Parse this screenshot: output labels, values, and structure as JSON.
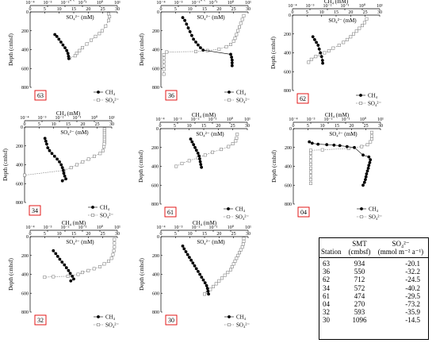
{
  "axis_text": {
    "ch4_axis": "CH₄ (mM)",
    "so4_axis": "SO₄²⁻ (mM)",
    "depth_axis": "Depth (cmbsf)",
    "log_ticks": [
      "10⁻⁴",
      "10⁻³",
      "10⁻²",
      "10⁻¹",
      "10⁰",
      "10¹"
    ],
    "lin_ticks": [
      "0",
      "5",
      "10",
      "15",
      "20",
      "25",
      "30"
    ],
    "depth_ticks": [
      "0",
      "200",
      "400",
      "600",
      "800"
    ]
  },
  "legend": {
    "ch4": "CH₄",
    "so4": "SO₄²⁻"
  },
  "colors": {
    "ch4": "#000000",
    "so4": "#888888"
  },
  "table": {
    "headers": {
      "station": "Station",
      "smt": "SMT",
      "smt_unit": "(cmbsf)",
      "flux": "SO₄²⁻",
      "flux_unit": "(mmol m⁻² a⁻¹)"
    },
    "rows": [
      {
        "station": "63",
        "smt": "934",
        "flux": "-20.1"
      },
      {
        "station": "36",
        "smt": "550",
        "flux": "-32.2"
      },
      {
        "station": "62",
        "smt": "712",
        "flux": "-24.5"
      },
      {
        "station": "34",
        "smt": "572",
        "flux": "-40.2"
      },
      {
        "station": "61",
        "smt": "474",
        "flux": "-29.5"
      },
      {
        "station": "04",
        "smt": "270",
        "flux": "-73.2"
      },
      {
        "station": "32",
        "smt": "593",
        "flux": "-35.9"
      },
      {
        "station": "30",
        "smt": "1096",
        "flux": "-14.5"
      }
    ]
  },
  "chart_data": [
    {
      "type": "scatter",
      "station": "63",
      "x_top_scale": "log",
      "x_top_range": [
        0.0001,
        10
      ],
      "x_bottom_range": [
        0,
        30
      ],
      "y_range": [
        0,
        800
      ],
      "y_reversed": true,
      "ch4": [
        [
          8.5,
          240
        ],
        [
          9.2,
          260
        ],
        [
          9.9,
          290
        ],
        [
          10.6,
          320
        ],
        [
          11.3,
          350
        ],
        [
          12.0,
          380
        ],
        [
          12.6,
          410
        ],
        [
          13.0,
          440
        ],
        [
          13.2,
          470
        ],
        [
          13.3,
          495
        ]
      ],
      "so4": [
        [
          27.0,
          20
        ],
        [
          27.3,
          50
        ],
        [
          27.0,
          90
        ],
        [
          26.0,
          150
        ],
        [
          24.8,
          200
        ],
        [
          23.8,
          230
        ],
        [
          22.5,
          260
        ],
        [
          21.0,
          300
        ],
        [
          19.5,
          340
        ],
        [
          18.0,
          380
        ],
        [
          17.0,
          410
        ],
        [
          16.0,
          440
        ],
        [
          15.5,
          465
        ],
        [
          13.5,
          490
        ]
      ]
    },
    {
      "type": "scatter",
      "station": "36",
      "x_top_scale": "log",
      "x_top_range": [
        0.0001,
        10
      ],
      "x_bottom_range": [
        0,
        30
      ],
      "y_range": [
        0,
        800
      ],
      "y_reversed": true,
      "ch4": [
        [
          7.5,
          60
        ],
        [
          8.2,
          90
        ],
        [
          8.8,
          130
        ],
        [
          9.4,
          170
        ],
        [
          10.0,
          210
        ],
        [
          10.6,
          250
        ],
        [
          11.2,
          290
        ],
        [
          12.0,
          320
        ],
        [
          12.8,
          350
        ],
        [
          13.6,
          380
        ],
        [
          14.5,
          405
        ],
        [
          24.0,
          450
        ],
        [
          24.3,
          480
        ],
        [
          24.5,
          510
        ],
        [
          24.5,
          540
        ],
        [
          24.5,
          570
        ]
      ],
      "so4": [
        [
          28.5,
          40
        ],
        [
          28.0,
          80
        ],
        [
          27.5,
          120
        ],
        [
          27.0,
          160
        ],
        [
          26.5,
          200
        ],
        [
          26.0,
          240
        ],
        [
          25.5,
          280
        ],
        [
          25.0,
          310
        ],
        [
          24.0,
          345
        ],
        [
          22.5,
          370
        ],
        [
          20.0,
          395
        ],
        [
          16.0,
          410
        ],
        [
          12.0,
          420
        ],
        [
          2.0,
          425
        ],
        [
          1.0,
          455
        ],
        [
          1.0,
          490
        ],
        [
          1.0,
          530
        ],
        [
          1.0,
          570
        ],
        [
          1.0,
          610
        ],
        [
          1.0,
          660
        ]
      ]
    },
    {
      "type": "scatter",
      "station": "62",
      "x_top_scale": "log",
      "x_top_range": [
        0.0001,
        10
      ],
      "x_bottom_range": [
        0,
        30
      ],
      "y_range": [
        0,
        800
      ],
      "y_reversed": true,
      "ch4": [
        [
          7.0,
          230
        ],
        [
          7.6,
          260
        ],
        [
          8.2,
          290
        ],
        [
          8.8,
          320
        ],
        [
          9.2,
          360
        ],
        [
          9.6,
          400
        ],
        [
          10.0,
          440
        ],
        [
          10.3,
          480
        ],
        [
          10.4,
          510
        ]
      ],
      "so4": [
        [
          25.5,
          40
        ],
        [
          24.8,
          80
        ],
        [
          24.0,
          110
        ],
        [
          23.0,
          140
        ],
        [
          22.0,
          170
        ],
        [
          21.0,
          200
        ],
        [
          20.0,
          230
        ],
        [
          18.8,
          260
        ],
        [
          17.5,
          290
        ],
        [
          16.0,
          320
        ],
        [
          14.0,
          350
        ],
        [
          12.5,
          380
        ],
        [
          11.0,
          400
        ],
        [
          9.5,
          420
        ],
        [
          8.0,
          440
        ],
        [
          6.5,
          470
        ],
        [
          5.5,
          500
        ]
      ]
    },
    {
      "type": "scatter",
      "station": "34",
      "x_top_scale": "log",
      "x_top_range": [
        0.0001,
        10
      ],
      "x_bottom_range": [
        0,
        30
      ],
      "y_range": [
        0,
        800
      ],
      "y_reversed": true,
      "ch4": [
        [
          7.0,
          120
        ],
        [
          7.3,
          150
        ],
        [
          7.6,
          180
        ],
        [
          8.0,
          220
        ],
        [
          8.6,
          250
        ],
        [
          9.4,
          280
        ],
        [
          10.3,
          310
        ],
        [
          11.2,
          340
        ],
        [
          12.0,
          370
        ],
        [
          12.6,
          400
        ],
        [
          13.0,
          430
        ],
        [
          13.3,
          460
        ],
        [
          13.5,
          490
        ],
        [
          13.8,
          520
        ],
        [
          14.2,
          550
        ],
        [
          13.0,
          570
        ]
      ],
      "so4": [
        [
          27.5,
          20
        ],
        [
          27.5,
          40
        ],
        [
          27.5,
          60
        ],
        [
          27.5,
          80
        ],
        [
          27.5,
          100
        ],
        [
          27.5,
          120
        ],
        [
          27.5,
          140
        ],
        [
          27.5,
          160
        ],
        [
          27.4,
          180
        ],
        [
          27.3,
          210
        ],
        [
          27.0,
          250
        ],
        [
          26.0,
          280
        ],
        [
          24.0,
          310
        ],
        [
          22.0,
          340
        ],
        [
          20.0,
          370
        ],
        [
          18.0,
          400
        ],
        [
          16.0,
          430
        ],
        [
          13.5,
          460
        ],
        [
          0.0,
          510
        ]
      ]
    },
    {
      "type": "scatter",
      "station": "61",
      "x_top_scale": "log",
      "x_top_range": [
        0.0001,
        10
      ],
      "x_bottom_range": [
        0,
        30
      ],
      "y_range": [
        0,
        800
      ],
      "y_reversed": true,
      "ch4": [
        [
          10.5,
          110
        ],
        [
          11.0,
          140
        ],
        [
          11.5,
          170
        ],
        [
          12.0,
          200
        ],
        [
          12.5,
          230
        ],
        [
          13.0,
          260
        ],
        [
          13.4,
          290
        ],
        [
          13.6,
          320
        ],
        [
          13.8,
          350
        ],
        [
          14.0,
          380
        ],
        [
          14.2,
          410
        ]
      ],
      "so4": [
        [
          26.5,
          60
        ],
        [
          26.3,
          100
        ],
        [
          26.0,
          130
        ],
        [
          25.0,
          160
        ],
        [
          23.5,
          190
        ],
        [
          21.0,
          220
        ],
        [
          18.0,
          250
        ],
        [
          15.5,
          280
        ],
        [
          13.0,
          310
        ],
        [
          10.0,
          340
        ],
        [
          7.5,
          370
        ],
        [
          5.5,
          400
        ]
      ]
    },
    {
      "type": "scatter",
      "station": "04",
      "x_top_scale": "log",
      "x_top_range": [
        0.0001,
        10
      ],
      "x_bottom_range": [
        0,
        30
      ],
      "y_range": [
        0,
        800
      ],
      "y_reversed": true,
      "ch4": [
        [
          5.5,
          140
        ],
        [
          6.5,
          155
        ],
        [
          8.5,
          165
        ],
        [
          11.5,
          170
        ],
        [
          14.0,
          175
        ],
        [
          16.0,
          180
        ],
        [
          18.5,
          190
        ],
        [
          21.0,
          200
        ],
        [
          24.0,
          280
        ],
        [
          26.0,
          300
        ],
        [
          26.5,
          330
        ],
        [
          26.3,
          360
        ],
        [
          26.0,
          390
        ],
        [
          25.8,
          420
        ],
        [
          25.5,
          450
        ],
        [
          25.2,
          480
        ],
        [
          25.0,
          510
        ],
        [
          24.8,
          540
        ],
        [
          24.5,
          570
        ],
        [
          24.0,
          600
        ]
      ],
      "so4": [
        [
          27.0,
          40
        ],
        [
          27.0,
          80
        ],
        [
          27.0,
          110
        ],
        [
          26.5,
          140
        ],
        [
          25.5,
          170
        ],
        [
          23.5,
          190
        ],
        [
          19.0,
          210
        ],
        [
          10.0,
          225
        ],
        [
          6.0,
          230
        ],
        [
          6.0,
          260
        ],
        [
          6.0,
          300
        ],
        [
          6.0,
          340
        ],
        [
          6.0,
          380
        ],
        [
          6.0,
          420
        ],
        [
          6.0,
          460
        ],
        [
          6.0,
          500
        ],
        [
          6.0,
          540
        ],
        [
          6.0,
          580
        ]
      ]
    },
    {
      "type": "scatter",
      "station": "32",
      "x_top_scale": "log",
      "x_top_range": [
        0.0001,
        10
      ],
      "x_bottom_range": [
        0,
        30
      ],
      "y_range": [
        0,
        800
      ],
      "y_reversed": true,
      "ch4": [
        [
          8.0,
          150
        ],
        [
          8.8,
          180
        ],
        [
          9.5,
          210
        ],
        [
          10.2,
          240
        ],
        [
          11.0,
          270
        ],
        [
          11.8,
          300
        ],
        [
          12.5,
          330
        ],
        [
          13.2,
          360
        ],
        [
          13.8,
          390
        ],
        [
          14.5,
          420
        ],
        [
          15.0,
          450
        ],
        [
          14.0,
          470
        ]
      ],
      "so4": [
        [
          29.0,
          30
        ],
        [
          29.0,
          70
        ],
        [
          29.0,
          110
        ],
        [
          28.8,
          150
        ],
        [
          28.5,
          190
        ],
        [
          28.0,
          230
        ],
        [
          27.0,
          260
        ],
        [
          25.5,
          290
        ],
        [
          24.0,
          320
        ],
        [
          22.0,
          340
        ],
        [
          20.0,
          360
        ],
        [
          18.0,
          380
        ],
        [
          16.5,
          400
        ],
        [
          13.0,
          420
        ],
        [
          8.0,
          425
        ],
        [
          5.0,
          430
        ]
      ]
    },
    {
      "type": "scatter",
      "station": "30",
      "x_top_scale": "log",
      "x_top_range": [
        0.0001,
        10
      ],
      "x_bottom_range": [
        0,
        30
      ],
      "y_range": [
        0,
        800
      ],
      "y_reversed": true,
      "ch4": [
        [
          7.5,
          100
        ],
        [
          8.0,
          130
        ],
        [
          8.6,
          160
        ],
        [
          9.2,
          190
        ],
        [
          9.8,
          220
        ],
        [
          10.4,
          250
        ],
        [
          11.0,
          280
        ],
        [
          11.6,
          310
        ],
        [
          12.2,
          340
        ],
        [
          12.8,
          370
        ],
        [
          13.4,
          400
        ],
        [
          14.0,
          430
        ],
        [
          14.6,
          460
        ],
        [
          15.2,
          490
        ],
        [
          15.7,
          520
        ],
        [
          16.0,
          550
        ],
        [
          16.2,
          580
        ],
        [
          16.4,
          610
        ]
      ],
      "so4": [
        [
          28.5,
          20
        ],
        [
          28.5,
          50
        ],
        [
          28.3,
          80
        ],
        [
          28.0,
          110
        ],
        [
          27.5,
          140
        ],
        [
          27.0,
          170
        ],
        [
          26.5,
          200
        ],
        [
          26.0,
          230
        ],
        [
          25.5,
          260
        ],
        [
          25.0,
          290
        ],
        [
          24.5,
          320
        ],
        [
          24.0,
          350
        ],
        [
          23.0,
          380
        ],
        [
          22.0,
          410
        ],
        [
          21.0,
          440
        ],
        [
          20.0,
          470
        ],
        [
          19.0,
          500
        ],
        [
          18.0,
          530
        ],
        [
          17.0,
          560
        ],
        [
          16.0,
          590
        ],
        [
          15.0,
          610
        ]
      ]
    }
  ]
}
